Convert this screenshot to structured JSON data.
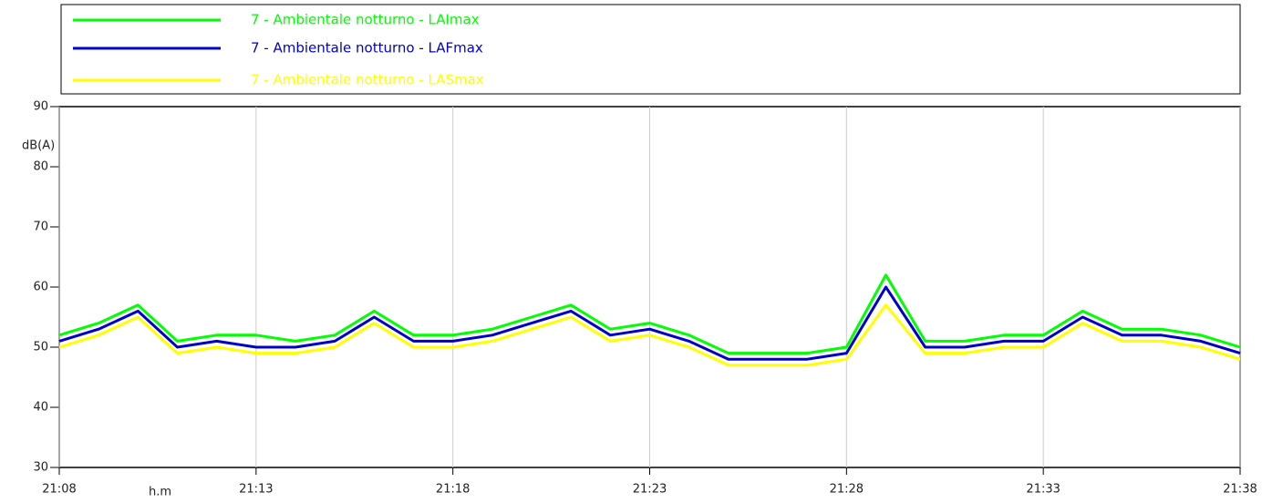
{
  "chart_data": {
    "type": "line",
    "y_label": "dB(A)",
    "x_label": "h.m",
    "x": [
      "21:08",
      "21:09",
      "21:10",
      "21:11",
      "21:12",
      "21:13",
      "21:14",
      "21:15",
      "21:16",
      "21:17",
      "21:18",
      "21:19",
      "21:20",
      "21:21",
      "21:22",
      "21:23",
      "21:24",
      "21:25",
      "21:26",
      "21:27",
      "21:28",
      "21:29",
      "21:30",
      "21:31",
      "21:32",
      "21:33",
      "21:34",
      "21:35",
      "21:36",
      "21:37",
      "21:38"
    ],
    "series": [
      {
        "name": "7 - Ambientale notturno - LAImax",
        "color": "#00ff00",
        "values": [
          52,
          54,
          57,
          51,
          52,
          52,
          51,
          52,
          56,
          52,
          52,
          53,
          55,
          57,
          53,
          54,
          52,
          49,
          49,
          49,
          50,
          62,
          51,
          51,
          52,
          52,
          56,
          53,
          53,
          52,
          50
        ]
      },
      {
        "name": "7 - Ambientale notturno - LAFmax",
        "color": "#0000cc",
        "values": [
          51,
          53,
          56,
          50,
          51,
          50,
          50,
          51,
          55,
          51,
          51,
          52,
          54,
          56,
          52,
          53,
          51,
          48,
          48,
          48,
          49,
          60,
          50,
          50,
          51,
          51,
          55,
          52,
          52,
          51,
          49
        ]
      },
      {
        "name": "7 - Ambientale notturno - LASmax",
        "color": "#ffff00",
        "values": [
          50,
          52,
          55,
          49,
          50,
          49,
          49,
          50,
          54,
          50,
          50,
          51,
          53,
          55,
          51,
          52,
          50,
          47,
          47,
          47,
          48,
          57,
          49,
          49,
          50,
          50,
          54,
          51,
          51,
          50,
          48
        ]
      }
    ],
    "xticks": [
      "21:08",
      "21:13",
      "21:18",
      "21:23",
      "21:28",
      "21:33",
      "21:38"
    ],
    "ylim": [
      30,
      90
    ],
    "yticks": [
      30,
      40,
      50,
      60,
      70,
      80,
      90
    ],
    "grid": "x"
  }
}
